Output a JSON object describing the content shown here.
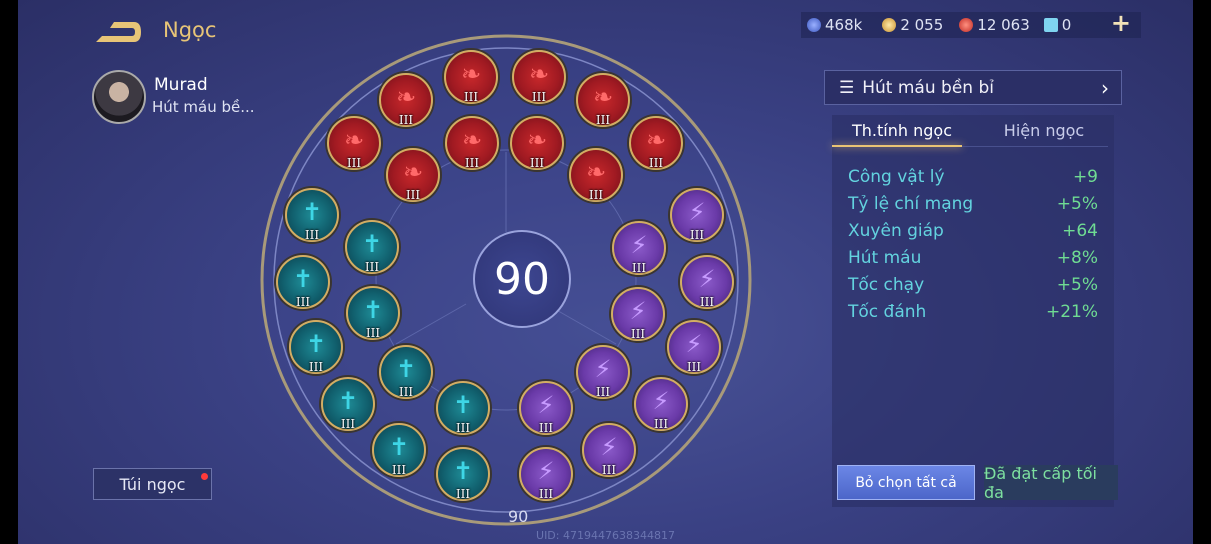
{
  "header": {
    "title": "Ngọc",
    "back_icon": "back-arrow-icon"
  },
  "resources": [
    {
      "icon": "blue-swirl-coin-icon",
      "value": "468k",
      "color": "#5a7be0"
    },
    {
      "icon": "gold-coin-icon",
      "value": "2 055",
      "color": "#e0b24a"
    },
    {
      "icon": "red-gem-icon",
      "value": "12 063",
      "color": "#e0493c"
    },
    {
      "icon": "blue-card-icon",
      "value": "0",
      "color": "#7fd4f0"
    }
  ],
  "add_label": "+",
  "hero": {
    "name": "Murad",
    "set": "Hút máu bề..."
  },
  "bag": {
    "label": "Túi ngọc",
    "has_notification": true
  },
  "wheel": {
    "level": "90",
    "bottom_label": "90",
    "gems": [
      {
        "type": "red",
        "level": "III"
      },
      {
        "type": "red",
        "level": "III"
      },
      {
        "type": "red",
        "level": "III"
      },
      {
        "type": "red",
        "level": "III"
      },
      {
        "type": "red",
        "level": "III"
      },
      {
        "type": "red",
        "level": "III"
      },
      {
        "type": "red",
        "level": "III"
      },
      {
        "type": "red",
        "level": "III"
      },
      {
        "type": "red",
        "level": "III"
      },
      {
        "type": "red",
        "level": "III"
      },
      {
        "type": "teal",
        "level": "III"
      },
      {
        "type": "teal",
        "level": "III"
      },
      {
        "type": "teal",
        "level": "III"
      },
      {
        "type": "teal",
        "level": "III"
      },
      {
        "type": "teal",
        "level": "III"
      },
      {
        "type": "teal",
        "level": "III"
      },
      {
        "type": "teal",
        "level": "III"
      },
      {
        "type": "teal",
        "level": "III"
      },
      {
        "type": "teal",
        "level": "III"
      },
      {
        "type": "teal",
        "level": "III"
      },
      {
        "type": "purple",
        "level": "III"
      },
      {
        "type": "purple",
        "level": "III"
      },
      {
        "type": "purple",
        "level": "III"
      },
      {
        "type": "purple",
        "level": "III"
      },
      {
        "type": "purple",
        "level": "III"
      },
      {
        "type": "purple",
        "level": "III"
      },
      {
        "type": "purple",
        "level": "III"
      },
      {
        "type": "purple",
        "level": "III"
      },
      {
        "type": "purple",
        "level": "III"
      },
      {
        "type": "purple",
        "level": "III"
      }
    ]
  },
  "uid": "UID: 4719447638344817",
  "panel": {
    "set_name": "Hút máu bền bỉ",
    "tabs": [
      {
        "label": "Th.tính ngọc",
        "active": true
      },
      {
        "label": "Hiện ngọc",
        "active": false
      }
    ],
    "stats": [
      {
        "name": "Công vật lý",
        "value": "+9"
      },
      {
        "name": "Tỷ lệ chí mạng",
        "value": "+5%"
      },
      {
        "name": "Xuyên giáp",
        "value": "+64"
      },
      {
        "name": "Hút máu",
        "value": "+8%"
      },
      {
        "name": "Tốc chạy",
        "value": "+5%"
      },
      {
        "name": "Tốc đánh",
        "value": "+21%"
      }
    ],
    "clear_label": "Bỏ chọn tất cả",
    "max_label": "Đã đạt cấp tối đa"
  }
}
